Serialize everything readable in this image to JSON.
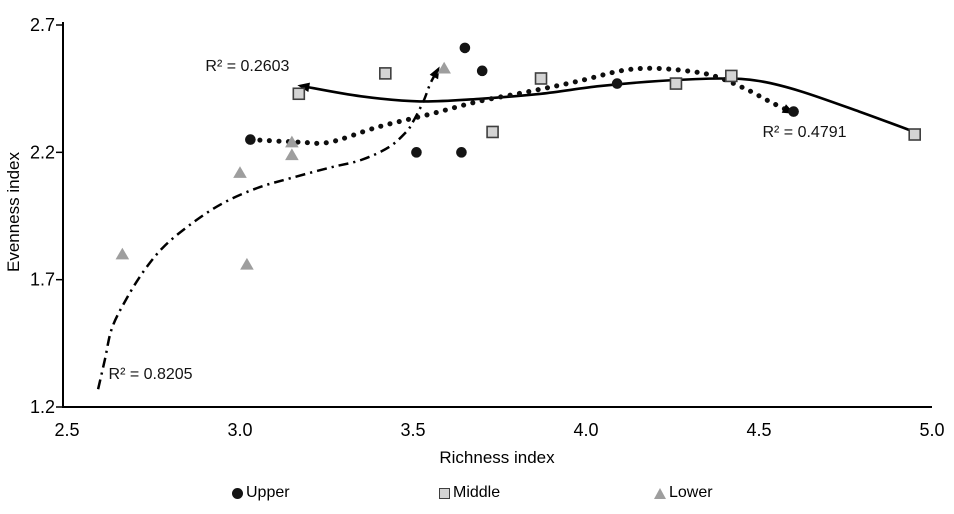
{
  "chart_data": {
    "type": "scatter",
    "title": "",
    "xlabel": "Richness index",
    "ylabel": "Evenness index",
    "xlim": [
      2.5,
      5.0
    ],
    "ylim": [
      1.2,
      2.7
    ],
    "xticks": [
      2.5,
      3.0,
      3.5,
      4.0,
      4.5,
      5.0
    ],
    "yticks": [
      1.2,
      1.7,
      2.2,
      2.7
    ],
    "grid": false,
    "legend_position": "bottom",
    "colors": {
      "upper_marker": "#141414",
      "middle_fill": "#d4d4d4",
      "middle_border": "#3f3f3f",
      "lower_marker": "#9e9e9e",
      "line": "#000000"
    },
    "series": [
      {
        "name": "Upper",
        "marker": "circle",
        "points": [
          [
            3.03,
            2.25
          ],
          [
            3.51,
            2.2
          ],
          [
            3.64,
            2.2
          ],
          [
            3.65,
            2.61
          ],
          [
            3.7,
            2.52
          ],
          [
            4.09,
            2.47
          ],
          [
            4.6,
            2.36
          ]
        ]
      },
      {
        "name": "Middle",
        "marker": "square",
        "points": [
          [
            3.17,
            2.43
          ],
          [
            3.42,
            2.51
          ],
          [
            3.73,
            2.28
          ],
          [
            3.87,
            2.49
          ],
          [
            4.26,
            2.47
          ],
          [
            4.42,
            2.5
          ],
          [
            4.95,
            2.27
          ]
        ]
      },
      {
        "name": "Lower",
        "marker": "triangle",
        "points": [
          [
            2.66,
            1.8
          ],
          [
            3.0,
            2.12
          ],
          [
            3.02,
            1.76
          ],
          [
            3.15,
            2.24
          ],
          [
            3.15,
            2.19
          ],
          [
            3.59,
            2.53
          ]
        ]
      }
    ],
    "trendlines": [
      {
        "series": "Middle",
        "style": "solid",
        "label": "R² = 0.2603",
        "label_anchor": [
          2.9,
          2.57
        ],
        "arrow": "start",
        "points": [
          [
            3.18,
            2.46
          ],
          [
            3.35,
            2.42
          ],
          [
            3.52,
            2.4
          ],
          [
            3.69,
            2.41
          ],
          [
            3.87,
            2.43
          ],
          [
            4.04,
            2.46
          ],
          [
            4.21,
            2.48
          ],
          [
            4.39,
            2.49
          ],
          [
            4.5,
            2.48
          ],
          [
            4.62,
            2.44
          ],
          [
            4.79,
            2.36
          ],
          [
            4.95,
            2.28
          ]
        ]
      },
      {
        "series": "Upper",
        "style": "dotted",
        "label": "R² = 0.4791",
        "label_anchor": [
          4.51,
          2.31
        ],
        "arrow": "end",
        "points": [
          [
            3.03,
            2.25
          ],
          [
            3.17,
            2.24
          ],
          [
            3.26,
            2.24
          ],
          [
            3.4,
            2.3
          ],
          [
            3.55,
            2.35
          ],
          [
            3.69,
            2.4
          ],
          [
            3.84,
            2.44
          ],
          [
            3.98,
            2.48
          ],
          [
            4.1,
            2.52
          ],
          [
            4.19,
            2.53
          ],
          [
            4.29,
            2.52
          ],
          [
            4.37,
            2.5
          ],
          [
            4.46,
            2.45
          ],
          [
            4.53,
            2.4
          ],
          [
            4.59,
            2.36
          ]
        ]
      },
      {
        "series": "Lower",
        "style": "dashdot",
        "label": "R² = 0.8205",
        "label_anchor": [
          2.62,
          1.36
        ],
        "arrow": "end",
        "points": [
          [
            2.59,
            1.27
          ],
          [
            2.61,
            1.39
          ],
          [
            2.63,
            1.51
          ],
          [
            2.67,
            1.62
          ],
          [
            2.72,
            1.73
          ],
          [
            2.78,
            1.83
          ],
          [
            2.86,
            1.92
          ],
          [
            2.95,
            2.0
          ],
          [
            3.05,
            2.06
          ],
          [
            3.15,
            2.1
          ],
          [
            3.26,
            2.14
          ],
          [
            3.35,
            2.17
          ],
          [
            3.43,
            2.22
          ],
          [
            3.48,
            2.28
          ],
          [
            3.5,
            2.32
          ],
          [
            3.53,
            2.4
          ],
          [
            3.55,
            2.47
          ],
          [
            3.57,
            2.52
          ]
        ]
      }
    ]
  },
  "legend": {
    "items": [
      {
        "label": "Upper",
        "marker": "circle"
      },
      {
        "label": "Middle",
        "marker": "square"
      },
      {
        "label": "Lower",
        "marker": "triangle"
      }
    ]
  }
}
